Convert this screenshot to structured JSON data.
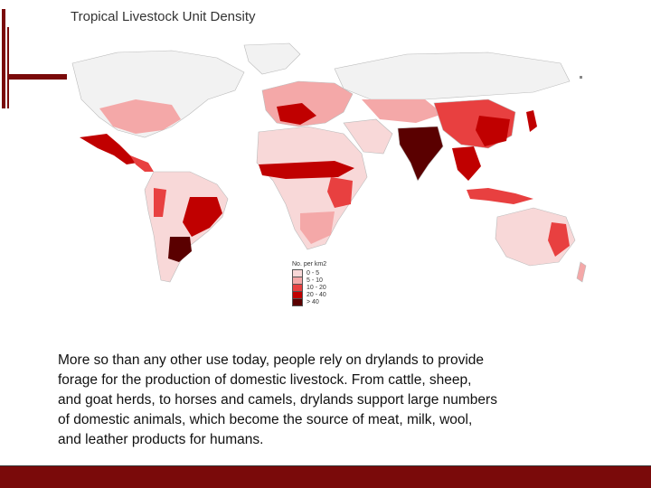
{
  "title": "Tropical Livestock Unit Density",
  "legend": {
    "title": "No. per km2",
    "items": [
      {
        "label": "0 - 5",
        "color": "#f8d8d8"
      },
      {
        "label": "5 - 10",
        "color": "#f4a8a8"
      },
      {
        "label": "10 - 20",
        "color": "#e84040"
      },
      {
        "label": "20 - 40",
        "color": "#c00000"
      },
      {
        "label": "> 40",
        "color": "#5a0000"
      }
    ]
  },
  "caption": {
    "lines": [
      "More so than any other use today, people rely on drylands to provide",
      " forage for the production of domestic livestock. From cattle, sheep,",
      " and goat herds, to horses and camels, drylands support large numbers",
      " of domestic animals, which become the source of meat, milk, wool,",
      "and leather products for humans."
    ]
  },
  "colors": {
    "accent": "#7a0a0a",
    "land_none": "#f2f2f2"
  }
}
